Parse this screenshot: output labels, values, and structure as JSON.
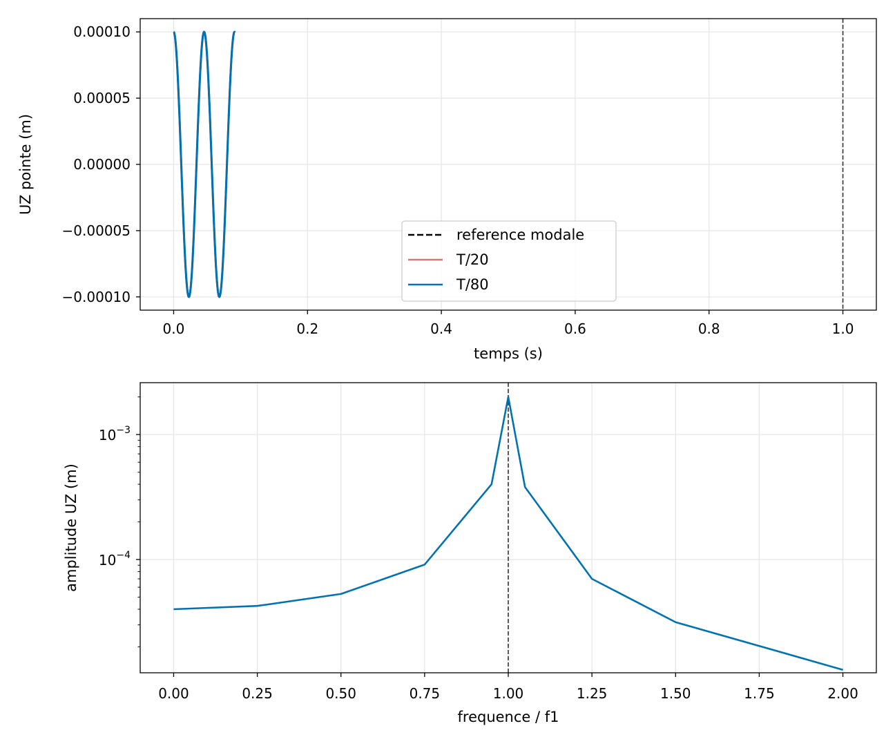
{
  "colors": {
    "t80": "#0072b2",
    "t20": "#cc7a72",
    "reference": "#000000",
    "grid": "#e5e5e5"
  },
  "chart_data": [
    {
      "type": "line",
      "xlabel": "temps (s)",
      "ylabel": "UZ pointe (m)",
      "xlim": [
        -0.05,
        1.05
      ],
      "ylim": [
        -0.00011,
        0.00011
      ],
      "xticks": [
        0.0,
        0.2,
        0.4,
        0.6,
        0.8,
        1.0
      ],
      "xtick_labels": [
        "0.0",
        "0.2",
        "0.4",
        "0.6",
        "0.8",
        "1.0"
      ],
      "yticks": [
        0.0001,
        5e-05,
        0.0,
        -5e-05,
        -0.0001
      ],
      "ytick_labels": [
        "0.00010",
        "0.00005",
        "0.00000",
        "−0.00005",
        "−0.00010"
      ],
      "grid": true,
      "legend": {
        "placement": "bottom-center",
        "entries": [
          {
            "label": "reference modale",
            "style": "dashed",
            "color": "#000000"
          },
          {
            "label": "T/20",
            "style": "solid",
            "color": "#cc7a72"
          },
          {
            "label": "T/80",
            "style": "solid",
            "color": "#0072b2"
          }
        ]
      },
      "series": [
        {
          "name": "reference modale",
          "kind": "cosine",
          "amplitude": 0.0001,
          "period": 0.0455,
          "t_start": 0.0,
          "t_end": 0.0915,
          "x_marker": 1.0,
          "style": "dashed",
          "color": "#000000"
        },
        {
          "name": "T/20",
          "kind": "cosine",
          "amplitude": 0.0001,
          "period": 0.0455,
          "t_start": 0.0,
          "t_end": 0.0915,
          "style": "solid",
          "color": "#cc7a72"
        },
        {
          "name": "T/80",
          "kind": "cosine",
          "amplitude": 0.0001,
          "period": 0.0455,
          "t_start": 0.0,
          "t_end": 0.0915,
          "style": "solid",
          "color": "#0072b2"
        }
      ]
    },
    {
      "type": "line",
      "xlabel": "frequence / f1",
      "ylabel": "amplitude UZ (m)",
      "yscale": "log",
      "xlim": [
        -0.1,
        2.1
      ],
      "ylim": [
        1.24e-05,
        0.0026
      ],
      "xticks": [
        0.0,
        0.25,
        0.5,
        0.75,
        1.0,
        1.25,
        1.5,
        1.75,
        2.0
      ],
      "xtick_labels": [
        "0.00",
        "0.25",
        "0.50",
        "0.75",
        "1.00",
        "1.25",
        "1.50",
        "1.75",
        "2.00"
      ],
      "y_major_ticks": [
        {
          "value": 0.001,
          "base": "10",
          "exp": "−3"
        },
        {
          "value": 0.0001,
          "base": "10",
          "exp": "−4"
        }
      ],
      "grid": true,
      "vline": {
        "x": 1.0,
        "style": "dashed",
        "color": "#000000"
      },
      "series": [
        {
          "color": "#0072b2",
          "x": [
            0.0,
            0.25,
            0.5,
            0.75,
            0.95,
            1.0,
            1.05,
            1.25,
            1.5,
            2.0
          ],
          "y": [
            4e-05,
            4.25e-05,
            5.3e-05,
            9.1e-05,
            0.0004,
            0.002,
            0.00038,
            7e-05,
            3.15e-05,
            1.31e-05
          ]
        }
      ]
    }
  ]
}
